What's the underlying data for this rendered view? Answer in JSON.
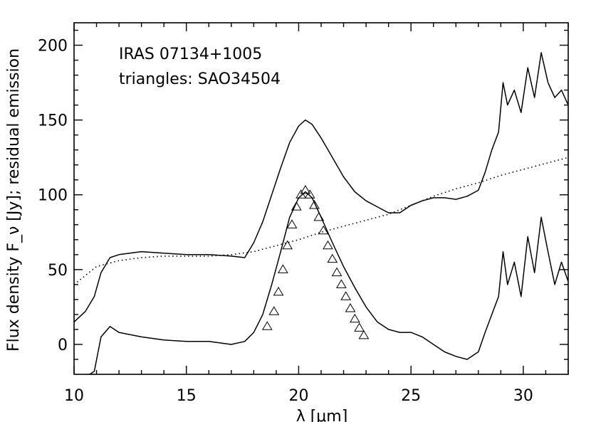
{
  "chart_data": {
    "type": "line",
    "xlabel": "λ [μm]",
    "ylabel": "Flux density F_ν [Jy]; residual emission",
    "xlim": [
      10,
      32
    ],
    "ylim": [
      -20,
      215
    ],
    "x_ticks": [
      10,
      15,
      20,
      25,
      30
    ],
    "y_ticks": [
      0,
      50,
      100,
      150,
      200
    ],
    "annotations": [
      "IRAS 07134+1005",
      "triangles: SAO34504"
    ],
    "grid": false,
    "series": [
      {
        "style": "solid",
        "x": [
          10.0,
          10.5,
          10.9,
          11.2,
          11.6,
          12.0,
          13.0,
          14.0,
          15.0,
          16.0,
          17.0,
          17.6,
          18.0,
          18.4,
          18.8,
          19.2,
          19.6,
          20.0,
          20.3,
          20.6,
          21.0,
          21.5,
          22.0,
          22.5,
          23.0,
          23.5,
          24.0,
          24.5,
          25.0,
          25.5,
          26.0,
          26.5,
          27.0,
          27.5,
          28.0,
          28.3,
          28.6,
          28.9,
          29.1,
          29.3,
          29.6,
          29.9,
          30.2,
          30.5,
          30.8,
          31.1,
          31.4,
          31.7,
          32.0
        ],
        "values": [
          15,
          22,
          32,
          48,
          58,
          60,
          62,
          61,
          60,
          60,
          59,
          58,
          68,
          82,
          100,
          118,
          135,
          146,
          150,
          147,
          138,
          125,
          112,
          102,
          96,
          92,
          88,
          88,
          93,
          96,
          98,
          98,
          97,
          99,
          103,
          115,
          130,
          142,
          175,
          160,
          170,
          155,
          185,
          165,
          195,
          175,
          165,
          170,
          160
        ]
      },
      {
        "style": "solid",
        "x": [
          10.0,
          10.5,
          10.9,
          11.2,
          11.6,
          12.0,
          13.0,
          14.0,
          15.0,
          16.0,
          17.0,
          17.6,
          18.0,
          18.4,
          18.8,
          19.2,
          19.6,
          20.0,
          20.3,
          20.6,
          21.0,
          21.5,
          22.0,
          22.5,
          23.0,
          23.5,
          24.0,
          24.5,
          25.0,
          25.5,
          26.0,
          26.5,
          27.0,
          27.5,
          28.0,
          28.3,
          28.6,
          28.9,
          29.1,
          29.3,
          29.6,
          29.9,
          30.2,
          30.5,
          30.8,
          31.1,
          31.4,
          31.7,
          32.0
        ],
        "values": [
          -25,
          -22,
          -18,
          5,
          12,
          8,
          5,
          3,
          2,
          2,
          0,
          2,
          8,
          20,
          40,
          62,
          85,
          98,
          102,
          98,
          85,
          68,
          52,
          38,
          25,
          15,
          10,
          8,
          8,
          5,
          0,
          -5,
          -8,
          -10,
          -5,
          8,
          20,
          32,
          62,
          40,
          55,
          32,
          72,
          48,
          85,
          62,
          40,
          55,
          42
        ]
      },
      {
        "style": "dotted",
        "x": [
          10,
          11,
          12,
          13,
          14,
          15,
          16,
          17,
          18,
          19,
          20,
          21,
          22,
          23,
          24,
          25,
          26,
          27,
          28,
          29,
          30,
          31,
          32
        ],
        "values": [
          40,
          52,
          56,
          58,
          59,
          59,
          59,
          60,
          62,
          66,
          70,
          75,
          79,
          83,
          87,
          93,
          99,
          104,
          108,
          113,
          117,
          121,
          125
        ]
      },
      {
        "style": "triangles",
        "x": [
          18.6,
          18.9,
          19.1,
          19.3,
          19.5,
          19.7,
          19.9,
          20.1,
          20.3,
          20.5,
          20.7,
          20.9,
          21.1,
          21.3,
          21.5,
          21.7,
          21.9,
          22.1,
          22.3,
          22.5,
          22.7,
          22.9
        ],
        "values": [
          12,
          22,
          35,
          50,
          66,
          80,
          92,
          100,
          103,
          100,
          93,
          85,
          76,
          66,
          57,
          48,
          40,
          32,
          24,
          17,
          11,
          6
        ]
      }
    ]
  }
}
